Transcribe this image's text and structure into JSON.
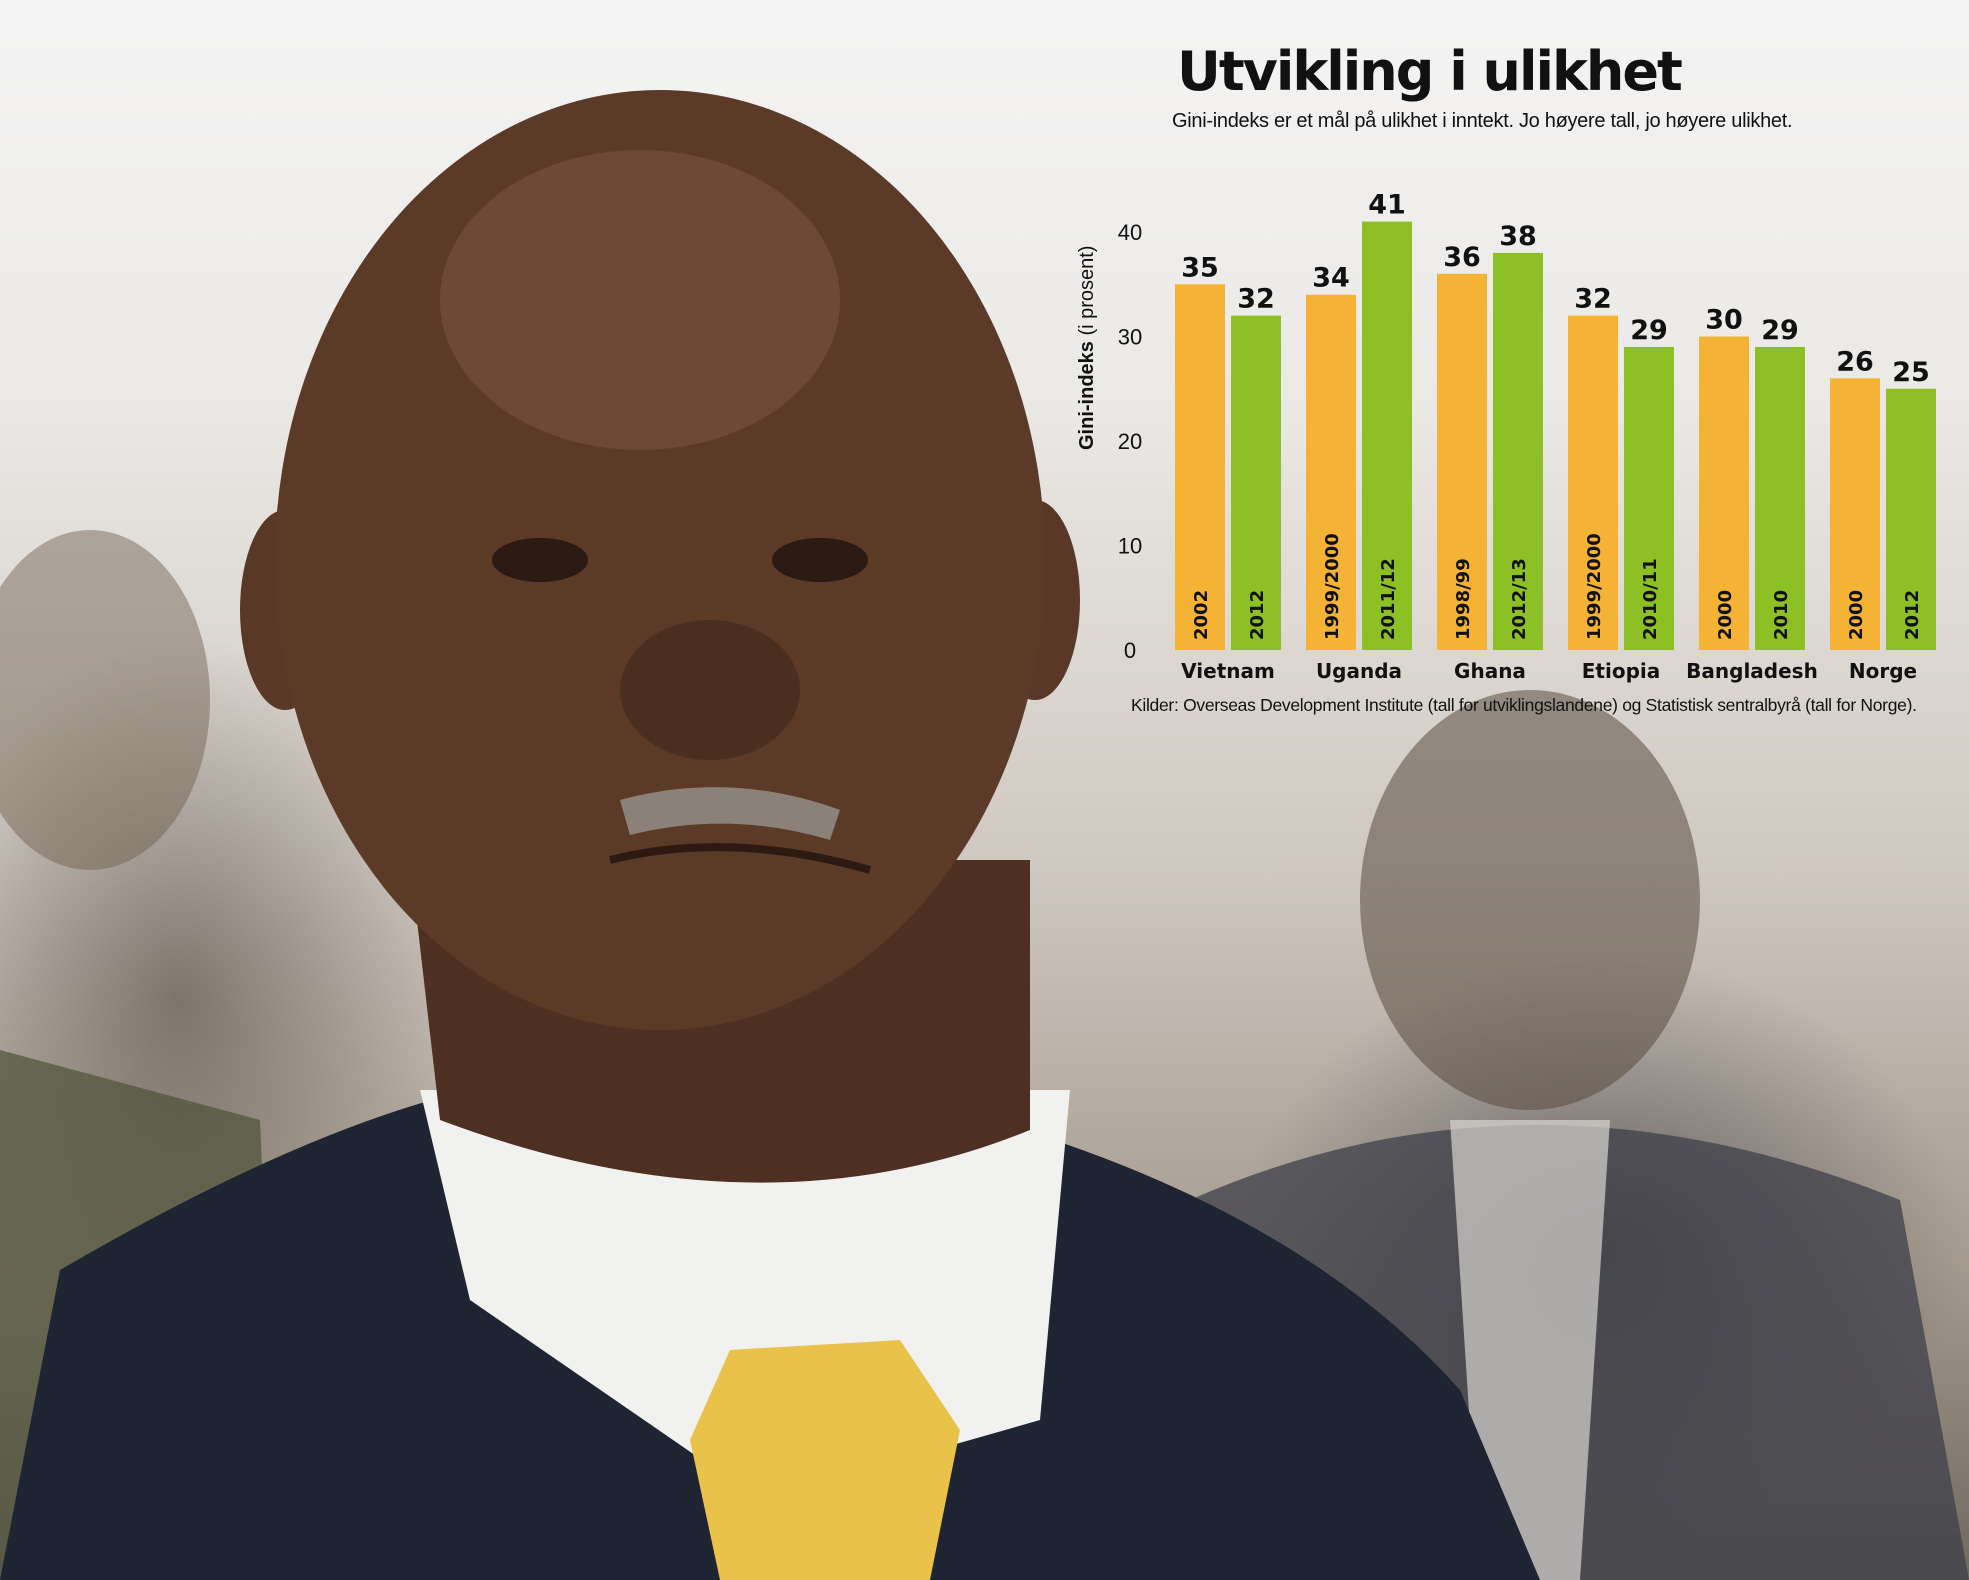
{
  "title": "Utvikling i ulikhet",
  "subtitle": "Gini-indeks er et mål på ulikhet i inntekt. Jo høyere tall, jo høyere ulikhet.",
  "source": "Kilder: Overseas Development Institute (tall for utviklingslandene) og Statistisk sentralbyrå (tall for Norge).",
  "colors": {
    "first": "#f5b335",
    "second": "#8dc025"
  },
  "chart_data": {
    "type": "bar",
    "ylabel_bold": "Gini-indeks",
    "ylabel_rest": " (i prosent)",
    "ylim": [
      0,
      40
    ],
    "yticks": [
      0,
      10,
      20,
      30,
      40
    ],
    "grid": false,
    "categories": [
      "Vietnam",
      "Uganda",
      "Ghana",
      "Etiopia",
      "Bangladesh",
      "Norge"
    ],
    "groups": [
      {
        "category": "Vietnam",
        "bars": [
          {
            "year": "2002",
            "value": 35
          },
          {
            "year": "2012",
            "value": 32
          }
        ]
      },
      {
        "category": "Uganda",
        "bars": [
          {
            "year": "1999/2000",
            "value": 34
          },
          {
            "year": "2011/12",
            "value": 41
          }
        ]
      },
      {
        "category": "Ghana",
        "bars": [
          {
            "year": "1998/99",
            "value": 36
          },
          {
            "year": "2012/13",
            "value": 38
          }
        ]
      },
      {
        "category": "Etiopia",
        "bars": [
          {
            "year": "1999/2000",
            "value": 32
          },
          {
            "year": "2010/11",
            "value": 29
          }
        ]
      },
      {
        "category": "Bangladesh",
        "bars": [
          {
            "year": "2000",
            "value": 30
          },
          {
            "year": "2010",
            "value": 29
          }
        ]
      },
      {
        "category": "Norge",
        "bars": [
          {
            "year": "2000",
            "value": 26
          },
          {
            "year": "2012",
            "value": 25
          }
        ]
      }
    ]
  }
}
